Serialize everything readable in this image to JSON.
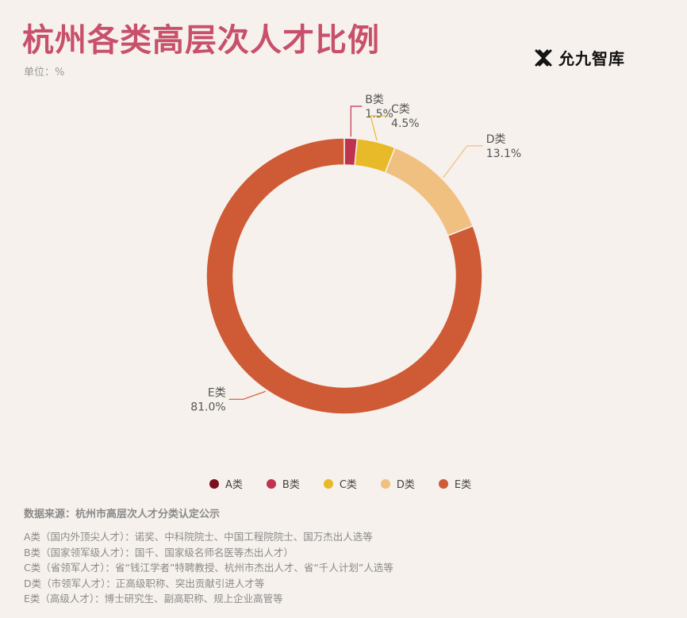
{
  "header": {
    "title": "杭州各类高层次人才比例",
    "unit": "单位：%"
  },
  "logo": {
    "text": "允九智库",
    "icon": "x-logo-icon"
  },
  "chart_data": {
    "type": "pie",
    "donut": true,
    "categories": [
      "A类",
      "B类",
      "C类",
      "D类",
      "E类"
    ],
    "values": [
      0,
      1.5,
      4.5,
      13.1,
      81.0
    ],
    "value_labels": [
      "",
      "1.5%",
      "4.5%",
      "13.1%",
      "81.0%"
    ],
    "colors": [
      "#7a1020",
      "#c0334e",
      "#e8b928",
      "#f0c080",
      "#cf5a36"
    ],
    "legend_position": "bottom"
  },
  "source": "数据来源：杭州市高层次人才分类认定公示",
  "notes": [
    "A类（国内外顶尖人才）：诺奖、中科院院士、中国工程院院士、国万杰出人选等",
    "B类（国家领军级人才）：国千、国家级名师名医等杰出人才）",
    "C类（省领军人才）：省“钱江学者”特聘教授、杭州市杰出人才、省“千人计划”人选等",
    "D类（市领军人才）：正高级职称、突出贡献引进人才等",
    "E类（高级人才）：博士研究生、副高职称、规上企业高管等"
  ]
}
